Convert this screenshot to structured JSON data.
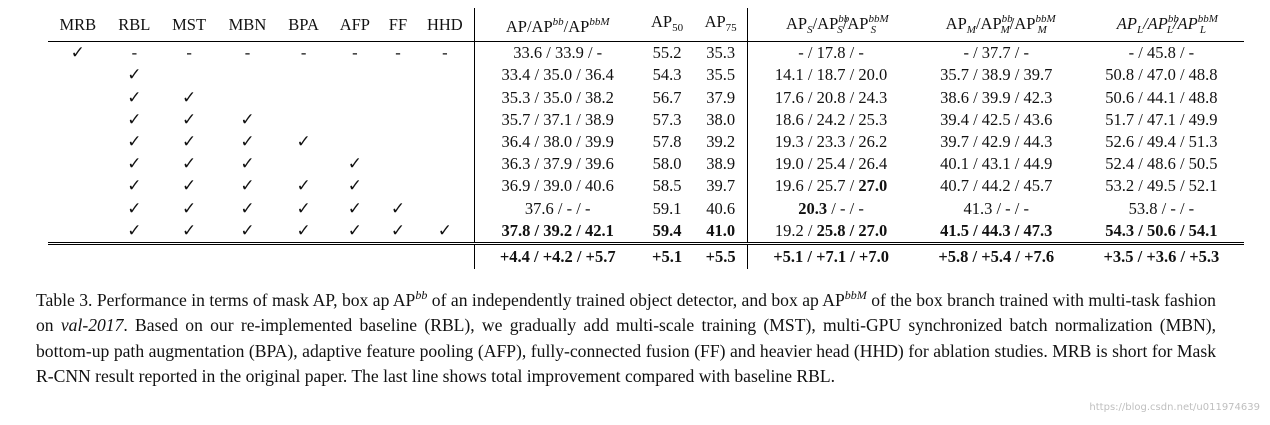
{
  "table": {
    "method_headers": [
      "MRB",
      "RBL",
      "MST",
      "MBN",
      "BPA",
      "AFP",
      "FF",
      "HHD"
    ],
    "metric_headers": {
      "ap": [
        "AP/AP",
        "bb",
        "/AP",
        "bbM"
      ],
      "ap50": [
        "AP",
        "50"
      ],
      "ap75": [
        "AP",
        "75"
      ],
      "aps": [
        "AP",
        "S",
        "/AP",
        "bb",
        "S",
        "/AP",
        "bbM",
        "S"
      ],
      "apm": [
        "AP",
        "M",
        "/AP",
        "bb",
        "M",
        "/AP",
        "bbM",
        "M"
      ],
      "apl": [
        "AP",
        "L",
        "/AP",
        "bb",
        "L",
        "/AP",
        "bbM",
        "L"
      ]
    },
    "check_symbol": "✓",
    "dash_symbol": "-",
    "rows": [
      {
        "flags": [
          "✓",
          "-",
          "-",
          "-",
          "-",
          "-",
          "-",
          "-"
        ],
        "ap": "33.6 / 33.9 /  -",
        "ap50": "55.2",
        "ap75": "35.3",
        "aps": " -  / 17.8 /  -",
        "apm": " -  / 37.7 /  -",
        "apl": " -  / 45.8 /  -"
      },
      {
        "flags": [
          "",
          "✓",
          "",
          "",
          "",
          "",
          "",
          ""
        ],
        "ap": "33.4 / 35.0 / 36.4",
        "ap50": "54.3",
        "ap75": "35.5",
        "aps": "14.1 / 18.7 / 20.0",
        "apm": "35.7 / 38.9 / 39.7",
        "apl": "50.8 / 47.0 / 48.8"
      },
      {
        "flags": [
          "",
          "✓",
          "✓",
          "",
          "",
          "",
          "",
          ""
        ],
        "ap": "35.3 / 35.0 / 38.2",
        "ap50": "56.7",
        "ap75": "37.9",
        "aps": "17.6 / 20.8 / 24.3",
        "apm": "38.6 / 39.9 / 42.3",
        "apl": "50.6 / 44.1 / 48.8"
      },
      {
        "flags": [
          "",
          "✓",
          "✓",
          "✓",
          "",
          "",
          "",
          ""
        ],
        "ap": "35.7 / 37.1 / 38.9",
        "ap50": "57.3",
        "ap75": "38.0",
        "aps": "18.6 / 24.2 / 25.3",
        "apm": "39.4 / 42.5 / 43.6",
        "apl": "51.7 / 47.1 / 49.9"
      },
      {
        "flags": [
          "",
          "✓",
          "✓",
          "✓",
          "✓",
          "",
          "",
          ""
        ],
        "ap": "36.4 / 38.0 / 39.9",
        "ap50": "57.8",
        "ap75": "39.2",
        "aps": "19.3 / 23.3 / 26.2",
        "apm": "39.7 / 42.9 / 44.3",
        "apl": "52.6 / 49.4 / 51.3"
      },
      {
        "flags": [
          "",
          "✓",
          "✓",
          "✓",
          "",
          "✓",
          "",
          ""
        ],
        "ap": "36.3 / 37.9 / 39.6",
        "ap50": "58.0",
        "ap75": "38.9",
        "aps": "19.0 / 25.4 / 26.4",
        "apm": "40.1 / 43.1 / 44.9",
        "apl": "52.4 / 48.6 / 50.5"
      },
      {
        "flags": [
          "",
          "✓",
          "✓",
          "✓",
          "✓",
          "✓",
          "",
          ""
        ],
        "ap": "36.9 / 39.0 / 40.6",
        "ap50": "58.5",
        "ap75": "39.7",
        "aps": "19.6 / 25.7 / <b>27.0</b>",
        "apm": "40.7 / 44.2 / 45.7",
        "apl": "53.2 / 49.5 / 52.1"
      },
      {
        "flags": [
          "",
          "✓",
          "✓",
          "✓",
          "✓",
          "✓",
          "✓",
          ""
        ],
        "ap": "37.6 /  -  /  -",
        "ap50": "59.1",
        "ap75": "40.6",
        "aps": "<b>20.3</b> /  -  /  -",
        "apm": "41.3 /  -  /  -",
        "apl": "53.8 /  -  /  -"
      },
      {
        "flags": [
          "",
          "✓",
          "✓",
          "✓",
          "✓",
          "✓",
          "✓",
          "✓"
        ],
        "ap": "<b>37.8 / 39.2 / 42.1</b>",
        "ap50": "<b>59.4</b>",
        "ap75": "<b>41.0</b>",
        "aps": "19.2 / <b>25.8 / 27.0</b>",
        "apm": "<b>41.5 / 44.3 / 47.3</b>",
        "apl": "<b>54.3 / 50.6 / 54.1</b>"
      }
    ],
    "delta_row": {
      "ap": "+4.4 / +4.2 / +5.7",
      "ap50": "+5.1",
      "ap75": "+5.5",
      "aps": "+5.1 / +7.1 / +7.0",
      "apm": "+5.8 / +5.4 / +7.6",
      "apl": "+3.5 / +3.6 / +5.3"
    }
  },
  "caption": {
    "part1": "Table 3. Performance in terms of mask AP, box ap AP",
    "sup1": "bb",
    "part2": " of an independently trained object detector, and box ap AP",
    "sup2": "bbM",
    "part3": " of the box branch trained with multi-task fashion on ",
    "italic": "val-2017",
    "part4": ". Based on our re-implemented baseline (RBL), we gradually add multi-scale training (MST), multi-GPU synchronized batch normalization (MBN), bottom-up path augmentation (BPA), adaptive feature pooling (AFP), fully-connected fusion (FF) and heavier head (HHD) for ablation studies. MRB is short for Mask R-CNN result reported in the original paper. The last line shows total improvement compared with baseline RBL."
  },
  "watermark": "https://blog.csdn.net/u011974639"
}
